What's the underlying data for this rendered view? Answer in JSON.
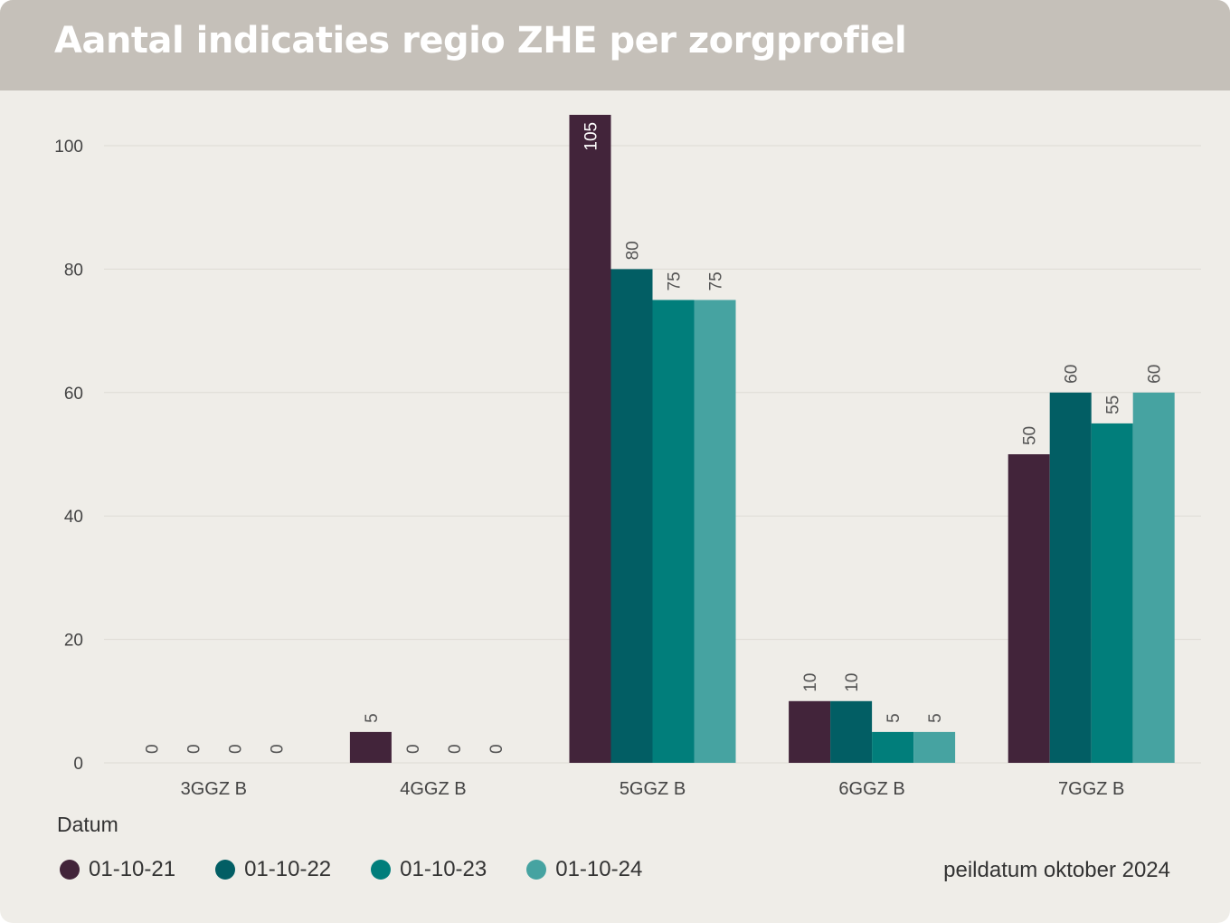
{
  "title": "Aantal indicaties regio ZHE per zorgprofiel",
  "legend_title": "Datum",
  "footnote": "peildatum oktober 2024",
  "chart_data": {
    "type": "bar",
    "title": "Aantal indicaties regio ZHE per zorgprofiel",
    "categories": [
      "3GGZ B",
      "4GGZ B",
      "5GGZ B",
      "6GGZ B",
      "7GGZ B"
    ],
    "series": [
      {
        "name": "01-10-21",
        "color": "#42243a",
        "values": [
          0,
          5,
          105,
          10,
          50
        ]
      },
      {
        "name": "01-10-22",
        "color": "#025e64",
        "values": [
          0,
          0,
          80,
          10,
          60
        ]
      },
      {
        "name": "01-10-23",
        "color": "#017e7b",
        "values": [
          0,
          0,
          75,
          5,
          55
        ]
      },
      {
        "name": "01-10-24",
        "color": "#46a3a1",
        "values": [
          0,
          0,
          75,
          5,
          60
        ]
      }
    ],
    "yticks": [
      0,
      20,
      40,
      60,
      80,
      100
    ],
    "ylim": [
      0,
      105
    ],
    "grid": true,
    "data_labels": true,
    "legend_position": "bottom-left"
  }
}
